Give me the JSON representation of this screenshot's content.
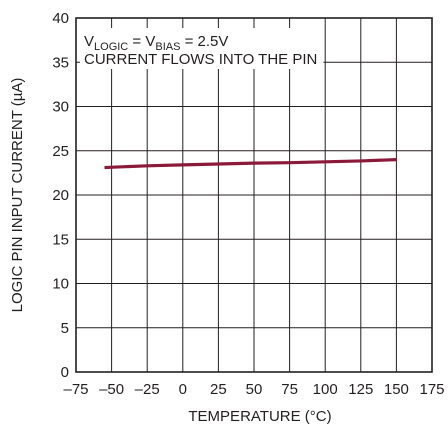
{
  "chart_data": {
    "type": "line",
    "xlabel": "TEMPERATURE (°C)",
    "ylabel": "LOGIC PIN INPUT CURRENT (µA)",
    "xlim": [
      -75,
      175
    ],
    "ylim": [
      0,
      40
    ],
    "x_ticks": [
      -75,
      -50,
      -25,
      0,
      25,
      50,
      75,
      100,
      125,
      150,
      175
    ],
    "x_tick_labels": [
      "–75",
      "–50",
      "–25",
      "0",
      "25",
      "50",
      "75",
      "100",
      "125",
      "150",
      "175"
    ],
    "y_ticks": [
      0,
      5,
      10,
      15,
      20,
      25,
      30,
      35,
      40
    ],
    "y_tick_labels": [
      "0",
      "5",
      "10",
      "15",
      "20",
      "25",
      "30",
      "35",
      "40"
    ],
    "grid": true,
    "series": [
      {
        "x": [
          -55,
          -25,
          0,
          25,
          50,
          75,
          100,
          125,
          150
        ],
        "y": [
          23.1,
          23.3,
          23.4,
          23.5,
          23.6,
          23.65,
          23.75,
          23.85,
          24.0
        ]
      }
    ],
    "annotation": {
      "line1_parts": [
        {
          "text": "V",
          "sub": false
        },
        {
          "text": "LOGIC",
          "sub": true
        },
        {
          "text": " = V",
          "sub": false
        },
        {
          "text": "BIAS",
          "sub": true
        },
        {
          "text": " = 2.5V",
          "sub": false
        }
      ],
      "line2": "CURRENT FLOWS INTO THE PIN"
    }
  },
  "colors": {
    "series": "#8b1a3a",
    "grid": "#231f20",
    "text": "#231f20"
  }
}
